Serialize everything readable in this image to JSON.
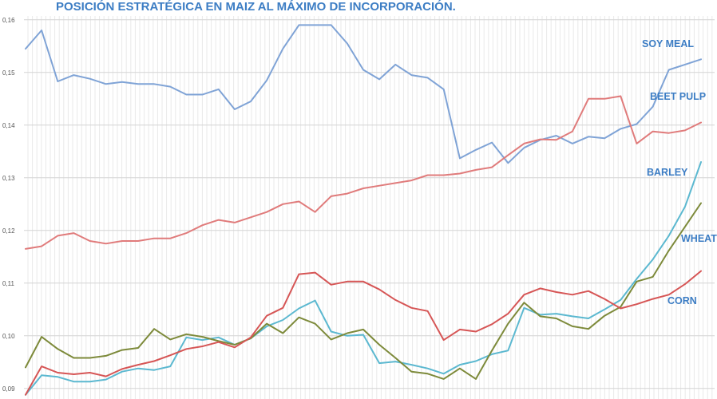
{
  "chart_data": {
    "type": "line",
    "title": "POSICIÓN ESTRATÉGICA EN MAIZ AL MÁXIMO DE INCORPORACIÓN.",
    "xlabel": "",
    "ylabel": "",
    "ylim": [
      0.088,
      0.163
    ],
    "yticks": [
      "0,09",
      "0,10",
      "0,11",
      "0,12",
      "0,13",
      "0,14",
      "0,15",
      "0,16"
    ],
    "ytick_values": [
      0.09,
      0.1,
      0.11,
      0.12,
      0.13,
      0.14,
      0.15,
      0.16
    ],
    "grid": true,
    "series": [
      {
        "name": "SOY MEAL",
        "color": "#7fa3d6",
        "label_color": "#3c7dc4",
        "values": [
          0.1545,
          0.158,
          0.1483,
          0.1495,
          0.1488,
          0.1478,
          0.1482,
          0.1478,
          0.1478,
          0.1473,
          0.1458,
          0.1458,
          0.1468,
          0.143,
          0.1445,
          0.1485,
          0.1545,
          0.159,
          0.159,
          0.159,
          0.1555,
          0.1505,
          0.1487,
          0.1515,
          0.1495,
          0.149,
          0.1468,
          0.1337,
          0.1353,
          0.1367,
          0.1328,
          0.1357,
          0.1372,
          0.138,
          0.1365,
          0.1378,
          0.1375,
          0.1393,
          0.1402,
          0.1435,
          0.1505,
          0.1515,
          0.1525
        ]
      },
      {
        "name": "BEET PULP",
        "color": "#e07b7b",
        "label_color": "#3c7dc4",
        "values": [
          0.1165,
          0.117,
          0.119,
          0.1195,
          0.118,
          0.1175,
          0.118,
          0.118,
          0.1185,
          0.1185,
          0.1195,
          0.121,
          0.122,
          0.1215,
          0.1225,
          0.1235,
          0.125,
          0.1255,
          0.1235,
          0.1265,
          0.127,
          0.128,
          0.1285,
          0.129,
          0.1295,
          0.1305,
          0.1305,
          0.1308,
          0.1315,
          0.132,
          0.1343,
          0.1365,
          0.1373,
          0.1372,
          0.1388,
          0.145,
          0.145,
          0.1455,
          0.1365,
          0.1388,
          0.1385,
          0.139,
          0.1405
        ]
      },
      {
        "name": "BARLEY",
        "color": "#5bb8d0",
        "label_color": "#3c7dc4",
        "values": [
          0.0888,
          0.0925,
          0.0922,
          0.0913,
          0.0913,
          0.0917,
          0.0932,
          0.0938,
          0.0935,
          0.0942,
          0.0997,
          0.0992,
          0.0997,
          0.0983,
          0.0995,
          0.1018,
          0.103,
          0.1052,
          0.1067,
          0.1008,
          0.1,
          0.1002,
          0.0948,
          0.0951,
          0.0945,
          0.0938,
          0.0928,
          0.0945,
          0.0952,
          0.0965,
          0.0972,
          0.1053,
          0.104,
          0.1042,
          0.1037,
          0.1033,
          0.105,
          0.1068,
          0.1108,
          0.1145,
          0.119,
          0.1245,
          0.133
        ]
      },
      {
        "name": "WHEAT",
        "color": "#7d8a3a",
        "label_color": "#3c7dc4",
        "values": [
          0.094,
          0.0998,
          0.0975,
          0.0958,
          0.0958,
          0.0962,
          0.0973,
          0.0977,
          0.1013,
          0.0993,
          0.1003,
          0.0998,
          0.099,
          0.0983,
          0.0995,
          0.1023,
          0.1005,
          0.1035,
          0.1023,
          0.0993,
          0.1005,
          0.1012,
          0.0983,
          0.0958,
          0.0932,
          0.0928,
          0.0918,
          0.0938,
          0.0918,
          0.0972,
          0.1023,
          0.1063,
          0.1037,
          0.1033,
          0.1018,
          0.1013,
          0.1038,
          0.1055,
          0.1103,
          0.1112,
          0.1162,
          0.1207,
          0.1252
        ]
      },
      {
        "name": "CORN",
        "color": "#d65555",
        "label_color": "#3c7dc4",
        "values": [
          0.0888,
          0.0942,
          0.093,
          0.0927,
          0.093,
          0.0923,
          0.0937,
          0.0945,
          0.0952,
          0.0963,
          0.0975,
          0.098,
          0.0988,
          0.0978,
          0.0997,
          0.1038,
          0.1053,
          0.1117,
          0.112,
          0.1097,
          0.1103,
          0.1103,
          0.1088,
          0.1068,
          0.1053,
          0.1047,
          0.0992,
          0.1012,
          0.1008,
          0.1022,
          0.1042,
          0.1078,
          0.109,
          0.1083,
          0.1078,
          0.1085,
          0.107,
          0.1052,
          0.106,
          0.107,
          0.1078,
          0.1098,
          0.1123
        ]
      }
    ]
  }
}
